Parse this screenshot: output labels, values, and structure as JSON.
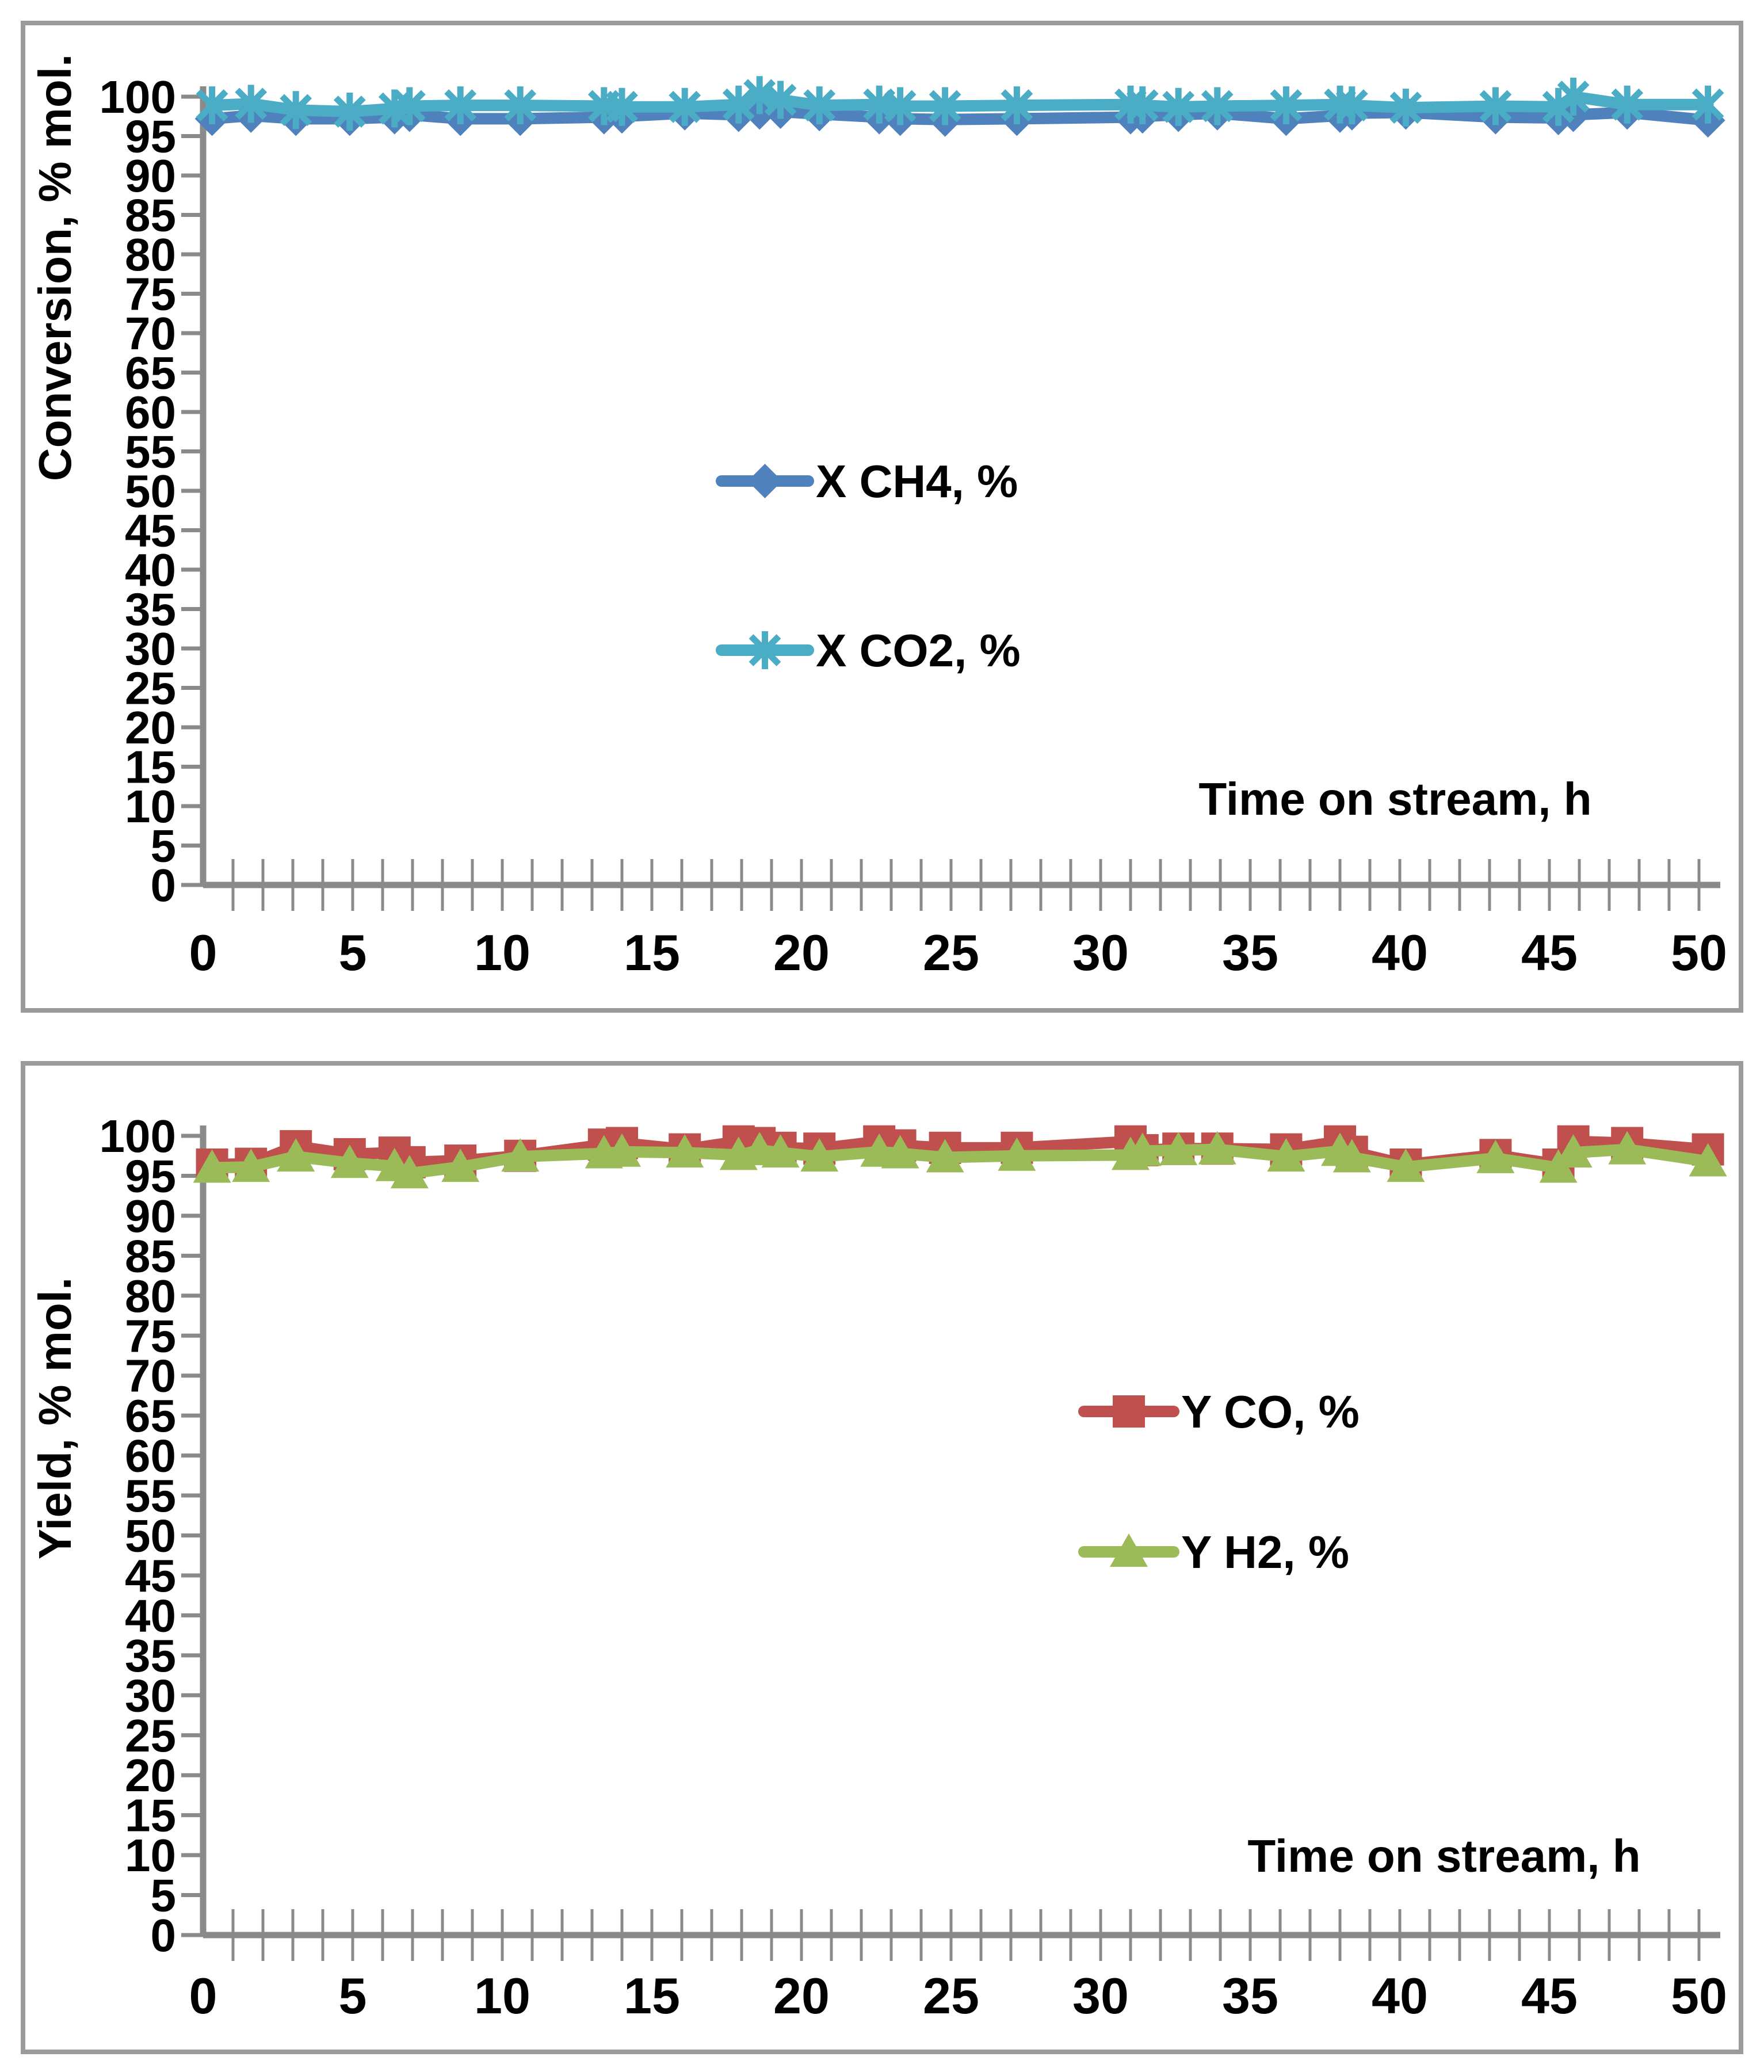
{
  "page": {
    "background": "#ffffff",
    "panel_border_color": "#9b9b9b",
    "axis_color": "#8a8a8a",
    "text_color": "#000000"
  },
  "chart_data": [
    {
      "type": "line",
      "panel": "top",
      "xlabel": "Time on stream, h",
      "ylabel": "Conversion, % mol.",
      "xlim": [
        0,
        50.7
      ],
      "ylim": [
        0,
        100
      ],
      "xtick_step": 5,
      "xminor_step": 1,
      "ytick_step": 5,
      "grid": false,
      "legend_position": "inside-center-left",
      "x": [
        0.3,
        1.6,
        3.1,
        4.9,
        6.4,
        6.9,
        8.6,
        10.6,
        13.4,
        14.0,
        16.1,
        17.9,
        18.6,
        19.3,
        20.6,
        22.6,
        23.3,
        24.8,
        27.2,
        31.0,
        31.4,
        32.6,
        33.9,
        36.2,
        38.0,
        38.4,
        40.2,
        43.2,
        45.3,
        45.8,
        47.6,
        50.3
      ],
      "series": [
        {
          "name": "X CH4, %",
          "marker": "diamond",
          "color": "#4F81BD",
          "values": [
            97.2,
            97.6,
            97.2,
            97.2,
            97.4,
            97.7,
            97.2,
            97.2,
            97.4,
            97.5,
            97.9,
            97.7,
            98.0,
            98.1,
            97.8,
            97.4,
            97.2,
            97.1,
            97.2,
            97.4,
            97.5,
            97.7,
            97.9,
            97.2,
            97.6,
            97.9,
            98.0,
            97.4,
            97.3,
            97.7,
            98.0,
            97.0
          ]
        },
        {
          "name": "X CO2, %",
          "marker": "asterisk",
          "color": "#4BACC6",
          "values": [
            98.9,
            99.1,
            98.3,
            98.1,
            98.5,
            98.8,
            98.9,
            98.9,
            98.8,
            98.7,
            98.7,
            99.0,
            100.2,
            99.6,
            98.9,
            99.0,
            98.8,
            98.8,
            98.9,
            99.0,
            98.9,
            98.7,
            98.8,
            98.9,
            99.0,
            98.9,
            98.6,
            98.8,
            98.7,
            100.0,
            99.0,
            99.0
          ]
        }
      ]
    },
    {
      "type": "line",
      "panel": "bottom",
      "xlabel": "Time on stream, h",
      "ylabel": "Yield, % mol.",
      "xlim": [
        0,
        50.7
      ],
      "ylim": [
        0,
        100
      ],
      "xtick_step": 5,
      "xminor_step": 1,
      "ytick_step": 5,
      "grid": false,
      "legend_position": "inside-center-right",
      "x": [
        0.3,
        1.6,
        3.1,
        4.9,
        6.4,
        6.9,
        8.6,
        10.6,
        13.4,
        14.0,
        16.1,
        17.9,
        18.6,
        19.3,
        20.6,
        22.6,
        23.3,
        24.8,
        27.2,
        31.0,
        31.4,
        32.6,
        33.9,
        36.2,
        38.0,
        38.4,
        40.2,
        43.2,
        45.3,
        45.8,
        47.6,
        50.3
      ],
      "series": [
        {
          "name": "Y CO, %",
          "marker": "square",
          "color": "#C0504D",
          "values": [
            96.4,
            96.5,
            98.7,
            97.7,
            97.9,
            96.7,
            96.9,
            97.5,
            98.9,
            99.1,
            98.3,
            99.3,
            99.1,
            98.5,
            98.4,
            99.3,
            98.8,
            98.5,
            98.5,
            99.3,
            98.2,
            98.4,
            98.4,
            98.3,
            99.3,
            98.0,
            96.4,
            97.6,
            96.4,
            99.3,
            99.1,
            98.3
          ]
        },
        {
          "name": "Y H2, %",
          "marker": "triangle",
          "color": "#9BBB59",
          "values": [
            96.0,
            96.1,
            97.4,
            96.6,
            96.2,
            95.3,
            96.1,
            97.4,
            97.8,
            98.0,
            97.9,
            97.6,
            98.2,
            97.9,
            97.4,
            98.0,
            97.8,
            97.3,
            97.5,
            97.6,
            98.1,
            98.2,
            98.3,
            97.4,
            98.1,
            97.3,
            96.1,
            97.2,
            96.0,
            97.9,
            98.3,
            96.8
          ]
        }
      ]
    }
  ]
}
